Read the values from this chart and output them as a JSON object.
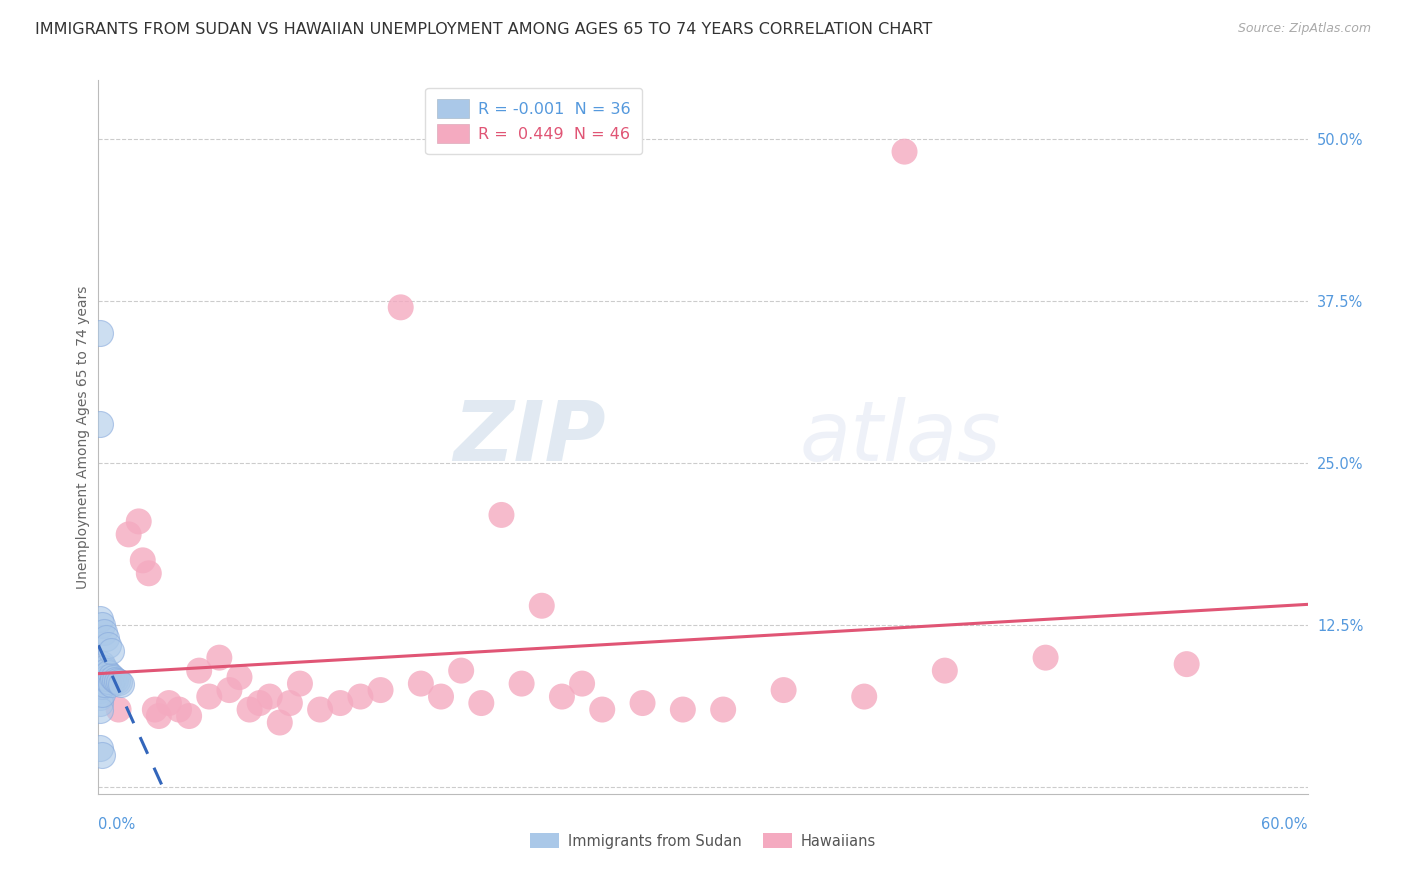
{
  "title": "IMMIGRANTS FROM SUDAN VS HAWAIIAN UNEMPLOYMENT AMONG AGES 65 TO 74 YEARS CORRELATION CHART",
  "source": "Source: ZipAtlas.com",
  "ylabel": "Unemployment Among Ages 65 to 74 years",
  "xlim": [
    0.0,
    0.6
  ],
  "ylim": [
    -0.005,
    0.545
  ],
  "yticks": [
    0.0,
    0.125,
    0.25,
    0.375,
    0.5
  ],
  "ytick_labels_right": [
    "",
    "12.5%",
    "25.0%",
    "37.5%",
    "50.0%"
  ],
  "color_sudan": "#aac8e8",
  "color_hawaiian": "#f4aac0",
  "line_color_sudan": "#3366bb",
  "line_color_hawaiian": "#e05575",
  "sudan_x": [
    0.001,
    0.001,
    0.001,
    0.001,
    0.001,
    0.001,
    0.001,
    0.002,
    0.002,
    0.002,
    0.002,
    0.002,
    0.003,
    0.003,
    0.003,
    0.004,
    0.004,
    0.005,
    0.005,
    0.006,
    0.006,
    0.007,
    0.008,
    0.009,
    0.01,
    0.011,
    0.001,
    0.001,
    0.001,
    0.002,
    0.003,
    0.004,
    0.005,
    0.006,
    0.001,
    0.002
  ],
  "sudan_y": [
    0.09,
    0.085,
    0.08,
    0.075,
    0.07,
    0.065,
    0.06,
    0.095,
    0.088,
    0.082,
    0.078,
    0.072,
    0.092,
    0.086,
    0.08,
    0.09,
    0.084,
    0.088,
    0.082,
    0.086,
    0.08,
    0.084,
    0.083,
    0.082,
    0.081,
    0.08,
    0.35,
    0.28,
    0.13,
    0.125,
    0.12,
    0.115,
    0.11,
    0.105,
    0.03,
    0.025
  ],
  "hawaiian_x": [
    0.005,
    0.01,
    0.015,
    0.02,
    0.022,
    0.025,
    0.028,
    0.03,
    0.035,
    0.04,
    0.045,
    0.05,
    0.055,
    0.06,
    0.065,
    0.07,
    0.075,
    0.08,
    0.085,
    0.09,
    0.095,
    0.1,
    0.11,
    0.12,
    0.13,
    0.14,
    0.15,
    0.16,
    0.17,
    0.18,
    0.19,
    0.2,
    0.21,
    0.22,
    0.23,
    0.24,
    0.25,
    0.27,
    0.29,
    0.31,
    0.34,
    0.38,
    0.4,
    0.42,
    0.47,
    0.54
  ],
  "hawaiian_y": [
    0.08,
    0.06,
    0.195,
    0.205,
    0.175,
    0.165,
    0.06,
    0.055,
    0.065,
    0.06,
    0.055,
    0.09,
    0.07,
    0.1,
    0.075,
    0.085,
    0.06,
    0.065,
    0.07,
    0.05,
    0.065,
    0.08,
    0.06,
    0.065,
    0.07,
    0.075,
    0.37,
    0.08,
    0.07,
    0.09,
    0.065,
    0.21,
    0.08,
    0.14,
    0.07,
    0.08,
    0.06,
    0.065,
    0.06,
    0.06,
    0.075,
    0.07,
    0.49,
    0.09,
    0.1,
    0.095
  ],
  "watermark_zip": "ZIP",
  "watermark_atlas": "atlas",
  "background_color": "#ffffff"
}
